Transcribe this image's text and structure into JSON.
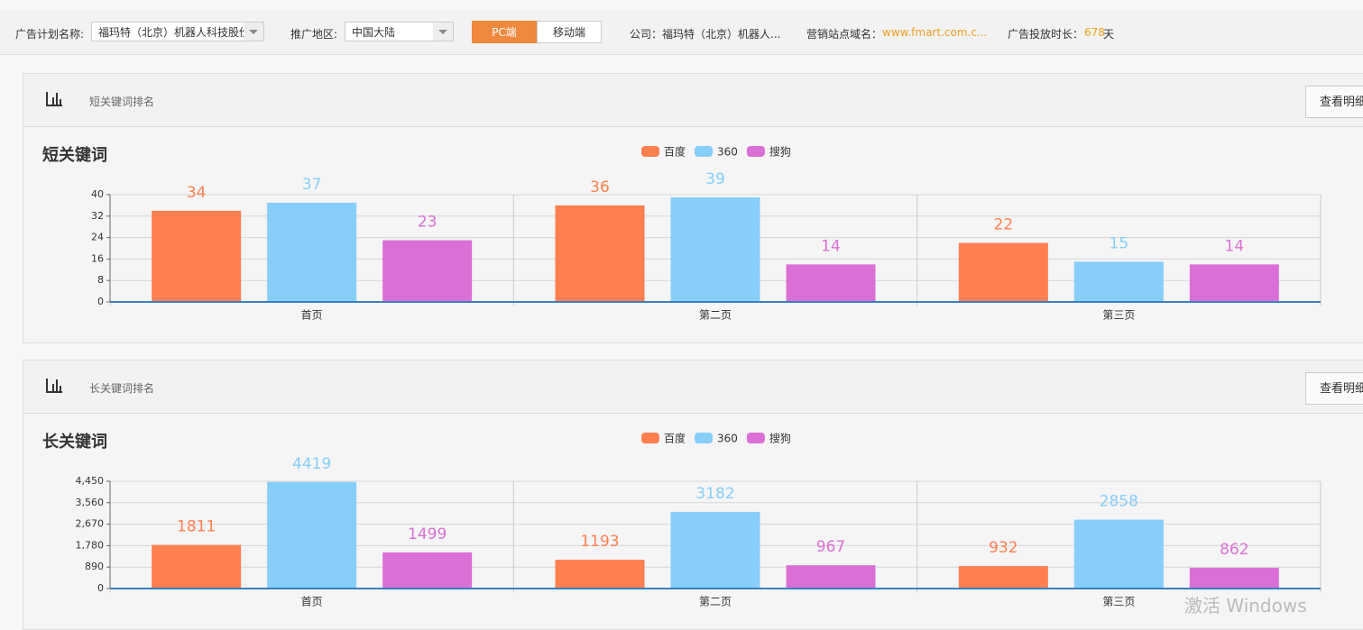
{
  "filters": {
    "plan_label": "广告计划名称:",
    "plan_value": "福玛特（北京）机器人科技股份",
    "region_label": "推广地区:",
    "region_value": "中国大陆",
    "pc": "PC端",
    "mobile": "移动端",
    "company": "公司：福玛特（北京）机器人...",
    "site_label": "营销站点域名：",
    "site_value": "www.fmart.com.c...",
    "duration_label": "广告投放时长：",
    "duration_value": "678",
    "duration_unit": "天"
  },
  "panels": [
    {
      "label": "短关键词排名",
      "button": "查看明细"
    },
    {
      "label": "长关键词排名",
      "button": "查看明细"
    }
  ],
  "watermark": "激活 Windows",
  "chart_data": [
    {
      "type": "bar",
      "title": "短关键词",
      "categories": [
        "首页",
        "第二页",
        "第三页"
      ],
      "series": [
        {
          "name": "百度",
          "color": "#ff7f50",
          "values": [
            34,
            36,
            22
          ]
        },
        {
          "name": "360",
          "color": "#87cefa",
          "values": [
            37,
            39,
            15
          ]
        },
        {
          "name": "搜狗",
          "color": "#da70d6",
          "values": [
            23,
            14,
            14
          ]
        }
      ],
      "ylim": [
        0,
        40
      ],
      "yticks": [
        0,
        8,
        16,
        24,
        32,
        40
      ],
      "grid": true
    },
    {
      "type": "bar",
      "title": "长关键词",
      "categories": [
        "首页",
        "第二页",
        "第三页"
      ],
      "series": [
        {
          "name": "百度",
          "color": "#ff7f50",
          "values": [
            1811,
            1193,
            932
          ]
        },
        {
          "name": "360",
          "color": "#87cefa",
          "values": [
            4419,
            3182,
            2858
          ]
        },
        {
          "name": "搜狗",
          "color": "#da70d6",
          "values": [
            1499,
            967,
            862
          ]
        }
      ],
      "ylim": [
        0,
        4450
      ],
      "yticks": [
        0,
        890,
        {
          "value": 1780,
          "label": "1,780"
        },
        {
          "value": 2670,
          "label": "2,670"
        },
        {
          "value": 3560,
          "label": "3,560"
        },
        {
          "value": 4450,
          "label": "4,450"
        }
      ],
      "grid": true
    }
  ]
}
